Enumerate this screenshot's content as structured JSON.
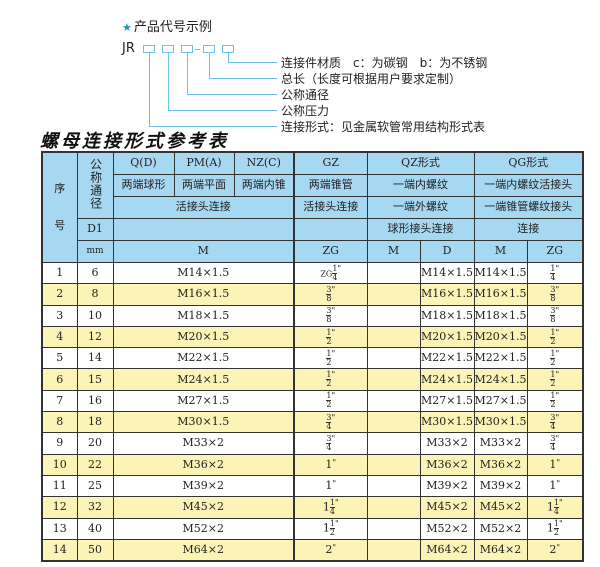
{
  "example": {
    "title": "产品代号示例",
    "star_icon": "★",
    "code_prefix": "JR",
    "separator": "-",
    "labels": [
      "连接件材质　c：为碳钢　b：为不锈钢",
      "总长（长度可根据用户要求定制）",
      "公称通径",
      "公称压力",
      "连接形式：见金属软管常用结构形式表"
    ]
  },
  "table_title": "螺母连接形式参考表",
  "header": {
    "seq": "序",
    "seq2": "号",
    "dn": "公称通径",
    "d1": "D1",
    "mm": "mm",
    "q": "Q(D)",
    "pm": "PM(A)",
    "nz": "NZ(C)",
    "gz": "GZ",
    "qz": "QZ形式",
    "qg": "QG形式",
    "q_desc": "两端球形",
    "pm_desc": "两端平面",
    "nz_desc": "两端内锥",
    "gz_desc": "两端锥管",
    "qz_desc": "一端内螺纹",
    "qg_desc": "一端内螺纹活接头",
    "qpmnz_conn": "活接头连接",
    "gz_conn": "活接头连接",
    "qz_conn": "一端外螺纹",
    "qg_conn": "一端锥管螺纹接头",
    "qz_conn2": "球形接头连接",
    "qg_conn2": "连接",
    "m": "M",
    "zg": "ZG",
    "qz_m": "M",
    "qz_d": "D",
    "qg_m": "M",
    "qg_zg": "ZG"
  },
  "colors": {
    "header": "#a6d8f2",
    "stripe": "#fbf4b6",
    "accent": "#6cc3e6"
  },
  "rows": [
    {
      "no": "1",
      "dn": "6",
      "m": "M14×1.5",
      "zg_prefix": "ZG",
      "zg_whole": "",
      "zg_num": "1",
      "zg_den": "4",
      "qz_d": "M14×1.5",
      "qg_m": "M14×1.5"
    },
    {
      "no": "2",
      "dn": "8",
      "m": "M16×1.5",
      "zg_prefix": "",
      "zg_whole": "",
      "zg_num": "3",
      "zg_den": "8",
      "qz_d": "M16×1.5",
      "qg_m": "M16×1.5"
    },
    {
      "no": "3",
      "dn": "10",
      "m": "M18×1.5",
      "zg_prefix": "",
      "zg_whole": "",
      "zg_num": "3",
      "zg_den": "8",
      "qz_d": "M18×1.5",
      "qg_m": "M18×1.5"
    },
    {
      "no": "4",
      "dn": "12",
      "m": "M20×1.5",
      "zg_prefix": "",
      "zg_whole": "",
      "zg_num": "1",
      "zg_den": "2",
      "qz_d": "M20×1.5",
      "qg_m": "M20×1.5"
    },
    {
      "no": "5",
      "dn": "14",
      "m": "M22×1.5",
      "zg_prefix": "",
      "zg_whole": "",
      "zg_num": "1",
      "zg_den": "2",
      "qz_d": "M22×1.5",
      "qg_m": "M22×1.5"
    },
    {
      "no": "6",
      "dn": "15",
      "m": "M24×1.5",
      "zg_prefix": "",
      "zg_whole": "",
      "zg_num": "1",
      "zg_den": "2",
      "qz_d": "M24×1.5",
      "qg_m": "M24×1.5"
    },
    {
      "no": "7",
      "dn": "16",
      "m": "M27×1.5",
      "zg_prefix": "",
      "zg_whole": "",
      "zg_num": "1",
      "zg_den": "2",
      "qz_d": "M27×1.5",
      "qg_m": "M27×1.5"
    },
    {
      "no": "8",
      "dn": "18",
      "m": "M30×1.5",
      "zg_prefix": "",
      "zg_whole": "",
      "zg_num": "3",
      "zg_den": "4",
      "qz_d": "M30×1.5",
      "qg_m": "M30×1.5"
    },
    {
      "no": "9",
      "dn": "20",
      "m": "M33×2",
      "zg_prefix": "",
      "zg_whole": "",
      "zg_num": "3",
      "zg_den": "4",
      "qz_d": "M33×2",
      "qg_m": "M33×2"
    },
    {
      "no": "10",
      "dn": "22",
      "m": "M36×2",
      "zg_prefix": "",
      "zg_whole": "1",
      "zg_num": "",
      "zg_den": "",
      "qz_d": "M36×2",
      "qg_m": "M36×2"
    },
    {
      "no": "11",
      "dn": "25",
      "m": "M39×2",
      "zg_prefix": "",
      "zg_whole": "1",
      "zg_num": "",
      "zg_den": "",
      "qz_d": "M39×2",
      "qg_m": "M39×2"
    },
    {
      "no": "12",
      "dn": "32",
      "m": "M45×2",
      "zg_prefix": "",
      "zg_whole": "1",
      "zg_num": "1",
      "zg_den": "4",
      "qz_d": "M45×2",
      "qg_m": "M45×2"
    },
    {
      "no": "13",
      "dn": "40",
      "m": "M52×2",
      "zg_prefix": "",
      "zg_whole": "1",
      "zg_num": "1",
      "zg_den": "2",
      "qz_d": "M52×2",
      "qg_m": "M52×2"
    },
    {
      "no": "14",
      "dn": "50",
      "m": "M64×2",
      "zg_prefix": "",
      "zg_whole": "2",
      "zg_num": "",
      "zg_den": "",
      "qz_d": "M64×2",
      "qg_m": "M64×2"
    }
  ],
  "inch_mark": "\""
}
